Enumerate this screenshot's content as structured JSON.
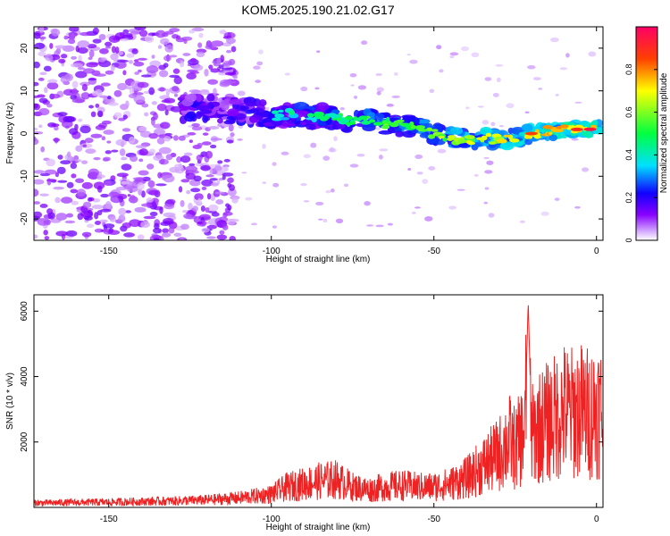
{
  "title": "KOM5.2025.190.21.02.G17",
  "chart_data": [
    {
      "type": "heatmap",
      "xlabel": "Height of straight line (km)",
      "ylabel": "Frequency (Hz)",
      "xlim": [
        -173,
        2
      ],
      "ylim": [
        -25,
        25
      ],
      "xticks": [
        -150,
        -100,
        -50,
        0
      ],
      "yticks": [
        -20,
        -10,
        0,
        10,
        20
      ],
      "colorbar": {
        "label": "Normalized spectral amplitude",
        "range": [
          0,
          1
        ],
        "ticks": [
          0.0,
          0.2,
          0.4,
          0.6,
          0.8
        ],
        "colors": [
          "#ffffff",
          "#cc99ff",
          "#8800ff",
          "#1100ff",
          "#00e0ff",
          "#00ff40",
          "#ffff00",
          "#ff4000",
          "#ff0066"
        ]
      },
      "ridge": [
        {
          "x": -125,
          "y": 6
        },
        {
          "x": -115,
          "y": 5.5
        },
        {
          "x": -105,
          "y": 5
        },
        {
          "x": -100,
          "y": 4
        },
        {
          "x": -95,
          "y": 4.5
        },
        {
          "x": -90,
          "y": 4
        },
        {
          "x": -85,
          "y": 4
        },
        {
          "x": -80,
          "y": 3.5
        },
        {
          "x": -75,
          "y": 3
        },
        {
          "x": -70,
          "y": 3
        },
        {
          "x": -65,
          "y": 2.5
        },
        {
          "x": -60,
          "y": 2
        },
        {
          "x": -55,
          "y": 1.5
        },
        {
          "x": -50,
          "y": 0
        },
        {
          "x": -45,
          "y": -1
        },
        {
          "x": -40,
          "y": -1.5
        },
        {
          "x": -35,
          "y": -1
        },
        {
          "x": -30,
          "y": -1.5
        },
        {
          "x": -25,
          "y": -1
        },
        {
          "x": -20,
          "y": 0
        },
        {
          "x": -15,
          "y": 0.5
        },
        {
          "x": -10,
          "y": 0.8
        },
        {
          "x": -5,
          "y": 1
        },
        {
          "x": 0,
          "y": 1
        }
      ]
    },
    {
      "type": "line",
      "xlabel": "Height of straight line (km)",
      "ylabel": "SNR (10 * v/v)",
      "xlim": [
        -173,
        2
      ],
      "ylim": [
        0,
        6500
      ],
      "xticks": [
        -150,
        -100,
        -50,
        0
      ],
      "yticks": [
        2000,
        4000,
        6000
      ],
      "color": "#ee2222",
      "series": [
        {
          "values": [
            {
              "x": -173,
              "y": 150
            },
            {
              "x": -160,
              "y": 170
            },
            {
              "x": -150,
              "y": 180
            },
            {
              "x": -140,
              "y": 200
            },
            {
              "x": -130,
              "y": 220
            },
            {
              "x": -120,
              "y": 250
            },
            {
              "x": -110,
              "y": 320
            },
            {
              "x": -105,
              "y": 380
            },
            {
              "x": -100,
              "y": 450
            },
            {
              "x": -95,
              "y": 700
            },
            {
              "x": -90,
              "y": 800
            },
            {
              "x": -85,
              "y": 900
            },
            {
              "x": -80,
              "y": 950
            },
            {
              "x": -75,
              "y": 700
            },
            {
              "x": -70,
              "y": 600
            },
            {
              "x": -65,
              "y": 700
            },
            {
              "x": -60,
              "y": 750
            },
            {
              "x": -55,
              "y": 700
            },
            {
              "x": -50,
              "y": 700
            },
            {
              "x": -45,
              "y": 800
            },
            {
              "x": -40,
              "y": 1000
            },
            {
              "x": -35,
              "y": 1400
            },
            {
              "x": -30,
              "y": 1800
            },
            {
              "x": -27,
              "y": 2300
            },
            {
              "x": -25,
              "y": 2000
            },
            {
              "x": -22,
              "y": 2600
            },
            {
              "x": -21,
              "y": 6300
            },
            {
              "x": -20,
              "y": 2400
            },
            {
              "x": -18,
              "y": 2700
            },
            {
              "x": -15,
              "y": 2900
            },
            {
              "x": -12,
              "y": 3100
            },
            {
              "x": -10,
              "y": 3300
            },
            {
              "x": -8,
              "y": 3200
            },
            {
              "x": -5,
              "y": 3300
            },
            {
              "x": -2,
              "y": 3200
            },
            {
              "x": 0,
              "y": 3400
            },
            {
              "x": 2,
              "y": 3200
            }
          ]
        }
      ]
    }
  ]
}
